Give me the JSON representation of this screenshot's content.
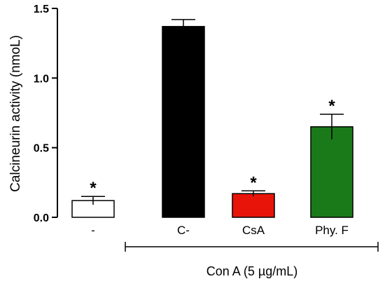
{
  "chart_data": {
    "type": "bar",
    "ylabel": "Calcineurin activity (nmoL)",
    "ylim": [
      0,
      1.5
    ],
    "yticks": [
      "0.0",
      "0.5",
      "1.0",
      "1.5"
    ],
    "categories": [
      "-",
      "C-",
      "CsA",
      "Phy. F"
    ],
    "values": [
      0.12,
      1.37,
      0.17,
      0.65
    ],
    "errors": [
      0.03,
      0.05,
      0.02,
      0.09
    ],
    "significance": [
      "*",
      "",
      "*",
      "*"
    ],
    "bar_colors": [
      "#ffffff",
      "#000000",
      "#e8140a",
      "#1a7a1a"
    ],
    "bar_edge_color": "#000000",
    "group_label": "Con A (5 µg/mL)",
    "group_span_categories": [
      1,
      3
    ],
    "grid": false,
    "legend": "none"
  }
}
